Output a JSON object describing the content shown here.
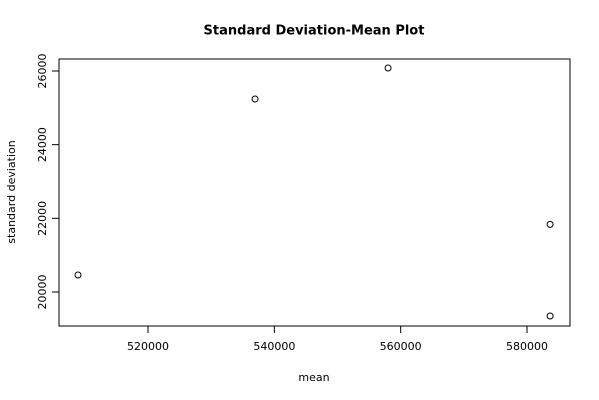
{
  "chart_data": {
    "type": "scatter",
    "title": "Standard Deviation-Mean Plot",
    "xlabel": "mean",
    "ylabel": "standard deviation",
    "x": [
      508915,
      536944,
      558005,
      583657,
      583657
    ],
    "values": [
      20461,
      25240,
      26081,
      21837,
      19349
    ],
    "color": "#000000",
    "xlim": [
      505906,
      586809
    ],
    "xticks": [
      520000,
      540000,
      560000,
      580000
    ],
    "ylim": [
      19077,
      26326
    ],
    "yticks": [
      20000,
      22000,
      24000,
      26000
    ]
  }
}
